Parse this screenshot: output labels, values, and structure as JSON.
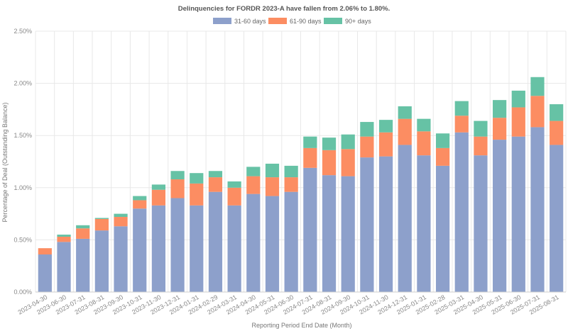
{
  "chart_data": {
    "type": "bar",
    "stacked": true,
    "title": "Delinquencies for FORDR 2023-A have fallen from 2.06% to 1.80%.",
    "xlabel": "Reporting Period End Date (Month)",
    "ylabel": "Percentage of Deal (Outstanding Balance)",
    "ylim": [
      0,
      2.5
    ],
    "yticks": [
      "0.00%",
      "0.50%",
      "1.00%",
      "1.50%",
      "2.00%",
      "2.50%"
    ],
    "ytick_values": [
      0,
      0.5,
      1.0,
      1.5,
      2.0,
      2.5
    ],
    "legend_position": "top-center",
    "categories": [
      "2023-04-30",
      "2023-06-30",
      "2023-07-31",
      "2023-08-31",
      "2023-09-30",
      "2023-10-31",
      "2023-11-30",
      "2023-12-31",
      "2024-01-31",
      "2024-02-29",
      "2024-03-31",
      "2024-04-30",
      "2024-05-31",
      "2024-06-30",
      "2024-07-31",
      "2024-08-31",
      "2024-09-30",
      "2024-10-31",
      "2024-11-30",
      "2024-12-31",
      "2025-01-31",
      "2025-02-28",
      "2025-03-31",
      "2025-04-30",
      "2025-05-31",
      "2025-06-30",
      "2025-07-31",
      "2025-08-31"
    ],
    "series": [
      {
        "name": "31-60 days",
        "color": "#8da0cb",
        "values": [
          0.36,
          0.48,
          0.51,
          0.59,
          0.63,
          0.8,
          0.83,
          0.9,
          0.83,
          0.96,
          0.83,
          0.94,
          0.92,
          0.96,
          1.19,
          1.12,
          1.11,
          1.29,
          1.3,
          1.41,
          1.31,
          1.21,
          1.53,
          1.31,
          1.46,
          1.49,
          1.58,
          1.41
        ]
      },
      {
        "name": "61-90 days",
        "color": "#fc8d62",
        "values": [
          0.06,
          0.05,
          0.1,
          0.11,
          0.09,
          0.08,
          0.15,
          0.18,
          0.21,
          0.14,
          0.17,
          0.17,
          0.18,
          0.14,
          0.19,
          0.24,
          0.26,
          0.2,
          0.23,
          0.25,
          0.23,
          0.17,
          0.16,
          0.18,
          0.21,
          0.28,
          0.3,
          0.23
        ]
      },
      {
        "name": "90+ days",
        "color": "#66c2a5",
        "values": [
          0.0,
          0.02,
          0.03,
          0.01,
          0.03,
          0.04,
          0.05,
          0.08,
          0.1,
          0.06,
          0.06,
          0.09,
          0.13,
          0.11,
          0.11,
          0.12,
          0.14,
          0.14,
          0.12,
          0.12,
          0.12,
          0.14,
          0.14,
          0.15,
          0.17,
          0.16,
          0.18,
          0.16
        ]
      }
    ]
  }
}
